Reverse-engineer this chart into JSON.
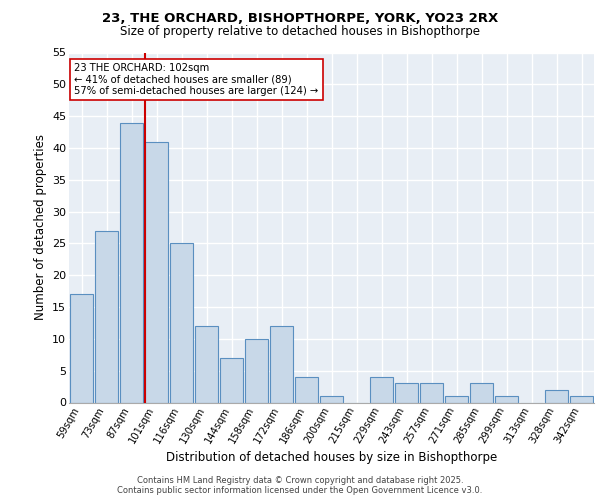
{
  "title1": "23, THE ORCHARD, BISHOPTHORPE, YORK, YO23 2RX",
  "title2": "Size of property relative to detached houses in Bishopthorpe",
  "xlabel": "Distribution of detached houses by size in Bishopthorpe",
  "ylabel": "Number of detached properties",
  "bar_labels": [
    "59sqm",
    "73sqm",
    "87sqm",
    "101sqm",
    "116sqm",
    "130sqm",
    "144sqm",
    "158sqm",
    "172sqm",
    "186sqm",
    "200sqm",
    "215sqm",
    "229sqm",
    "243sqm",
    "257sqm",
    "271sqm",
    "285sqm",
    "299sqm",
    "313sqm",
    "328sqm",
    "342sqm"
  ],
  "bar_values": [
    17,
    27,
    44,
    41,
    25,
    12,
    7,
    10,
    12,
    4,
    1,
    0,
    4,
    3,
    3,
    1,
    3,
    1,
    0,
    2,
    1
  ],
  "bar_color": "#c8d8e8",
  "bar_edge_color": "#5a8fc0",
  "bar_edge_width": 0.8,
  "vline_x_index": 3,
  "vline_color": "#cc0000",
  "annotation_text": "23 THE ORCHARD: 102sqm\n← 41% of detached houses are smaller (89)\n57% of semi-detached houses are larger (124) →",
  "annotation_box_color": "#ffffff",
  "annotation_box_edge": "#cc0000",
  "ylim": [
    0,
    55
  ],
  "yticks": [
    0,
    5,
    10,
    15,
    20,
    25,
    30,
    35,
    40,
    45,
    50,
    55
  ],
  "footer": "Contains HM Land Registry data © Crown copyright and database right 2025.\nContains public sector information licensed under the Open Government Licence v3.0.",
  "bg_color": "#e8eef5",
  "grid_color": "#ffffff",
  "title1_fontsize": 9.5,
  "title2_fontsize": 8.5
}
